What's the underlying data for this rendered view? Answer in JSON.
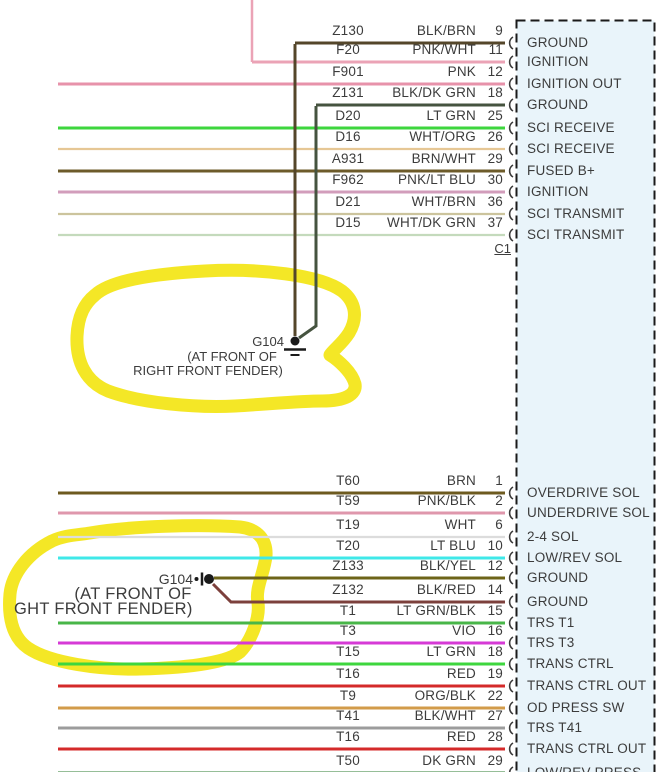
{
  "diagram": {
    "connector_fill": "#e9f4fa",
    "highlight_color": "#f3e515",
    "top_connector": {
      "footer_label": "C1",
      "rows": [
        {
          "circuit": "Z130",
          "wire": "BLK/BRN",
          "pin": "9",
          "function": "GROUND",
          "color": "#54462a"
        },
        {
          "circuit": "F20",
          "wire": "PNK/WHT",
          "pin": "11",
          "function": "IGNITION",
          "color": "#eba3b6"
        },
        {
          "circuit": "F901",
          "wire": "PNK",
          "pin": "12",
          "function": "IGNITION OUT",
          "color": "#e792aa"
        },
        {
          "circuit": "Z131",
          "wire": "BLK/DK GRN",
          "pin": "18",
          "function": "GROUND",
          "color": "#45533f"
        },
        {
          "circuit": "D20",
          "wire": "LT GRN",
          "pin": "25",
          "function": "SCI RECEIVE",
          "color": "#3ed63e"
        },
        {
          "circuit": "D16",
          "wire": "WHT/ORG",
          "pin": "26",
          "function": "SCI RECEIVE",
          "color": "#e6c795"
        },
        {
          "circuit": "A931",
          "wire": "BRN/WHT",
          "pin": "29",
          "function": "FUSED B+",
          "color": "#6d5b2a"
        },
        {
          "circuit": "F962",
          "wire": "PNK/LT BLU",
          "pin": "30",
          "function": "IGNITION",
          "color": "#d29dbb"
        },
        {
          "circuit": "D21",
          "wire": "WHT/BRN",
          "pin": "36",
          "function": "SCI TRANSMIT",
          "color": "#ccc49d"
        },
        {
          "circuit": "D15",
          "wire": "WHT/DK GRN",
          "pin": "37",
          "function": "SCI TRANSMIT",
          "color": "#c4dabc"
        }
      ],
      "ground": {
        "name": "G104",
        "location_line1": "(AT FRONT OF",
        "location_line2": "RIGHT FRONT FENDER)"
      }
    },
    "bottom_connector": {
      "rows": [
        {
          "circuit": "T60",
          "wire": "BRN",
          "pin": "1",
          "function": "OVERDRIVE SOL",
          "color": "#6d5a1f"
        },
        {
          "circuit": "T59",
          "wire": "PNK/BLK",
          "pin": "2",
          "function": "UNDERDRIVE SOL",
          "color": "#df97ac"
        },
        {
          "circuit": "T19",
          "wire": "WHT",
          "pin": "6",
          "function": "2-4 SOL",
          "color": "#dcdcdc"
        },
        {
          "circuit": "T20",
          "wire": "LT BLU",
          "pin": "10",
          "function": "LOW/REV SOL",
          "color": "#3fe8e8"
        },
        {
          "circuit": "Z133",
          "wire": "BLK/YEL",
          "pin": "12",
          "function": "GROUND",
          "color": "#6d6418"
        },
        {
          "circuit": "Z132",
          "wire": "BLK/RED",
          "pin": "14",
          "function": "GROUND",
          "color": "#7c403c"
        },
        {
          "circuit": "T1",
          "wire": "LT GRN/BLK",
          "pin": "15",
          "function": "TRS T1",
          "color": "#48b648"
        },
        {
          "circuit": "T3",
          "wire": "VIO",
          "pin": "16",
          "function": "TRS T3",
          "color": "#d63ad6"
        },
        {
          "circuit": "T15",
          "wire": "LT GRN",
          "pin": "18",
          "function": "TRANS CTRL",
          "color": "#3ed63e"
        },
        {
          "circuit": "T16",
          "wire": "RED",
          "pin": "19",
          "function": "TRANS CTRL OUT",
          "color": "#d42a2a"
        },
        {
          "circuit": "T9",
          "wire": "ORG/BLK",
          "pin": "22",
          "function": "OD PRESS SW",
          "color": "#d29b4a"
        },
        {
          "circuit": "T41",
          "wire": "BLK/WHT",
          "pin": "27",
          "function": "TRS T41",
          "color": "#9c9c9c"
        },
        {
          "circuit": "T16",
          "wire": "RED",
          "pin": "28",
          "function": "TRANS CTRL OUT",
          "color": "#d42a2a"
        },
        {
          "circuit": "T50",
          "wire": "DK GRN",
          "pin": "29",
          "function": "LOW/REV PRESS",
          "color": "#2e7d32"
        }
      ],
      "ground": {
        "name": "G104",
        "location_line1": "(AT FRONT OF",
        "location_line2": "GHT FRONT FENDER)"
      }
    }
  }
}
